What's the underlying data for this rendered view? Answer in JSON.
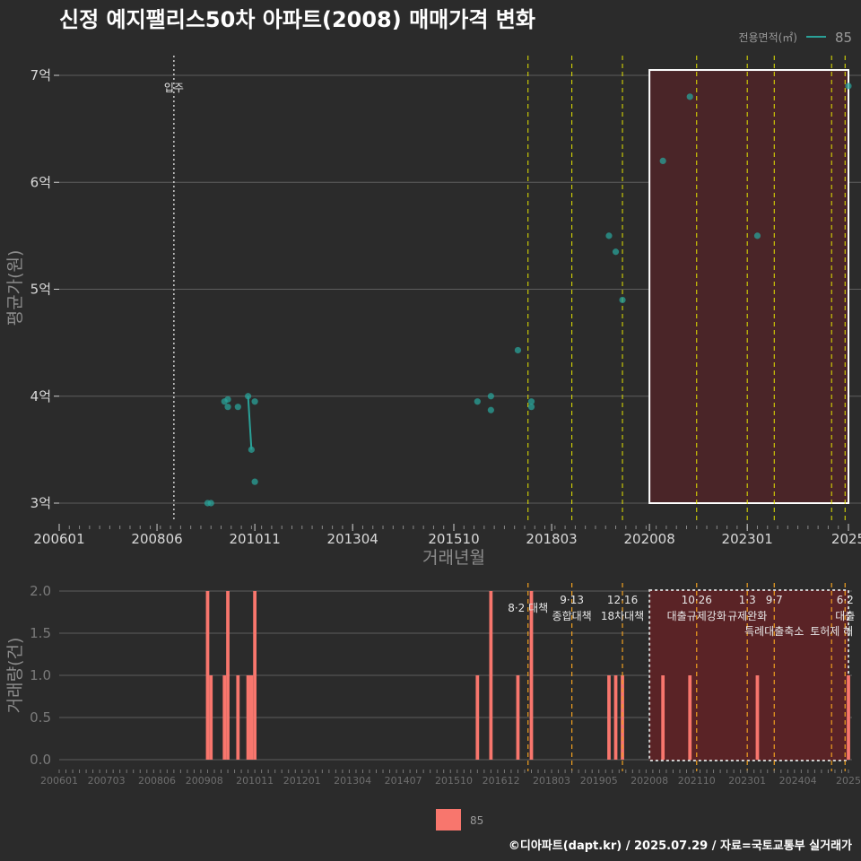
{
  "chart_data": [
    {
      "type": "scatter",
      "title": "신정 예지팰리스50차 아파트(2008) 매매가격 변화",
      "xlabel": "거래년월",
      "ylabel": "평균가(원)",
      "x_range": [
        "2006-01",
        "2025-07"
      ],
      "ylim": [
        2.8,
        7.2
      ],
      "y_ticks": [
        {
          "value": 3,
          "label": "3억"
        },
        {
          "value": 4,
          "label": "4억"
        },
        {
          "value": 5,
          "label": "5억"
        },
        {
          "value": 6,
          "label": "6억"
        },
        {
          "value": 7,
          "label": "7억"
        }
      ],
      "x_ticks": [
        "200601",
        "200806",
        "201011",
        "201304",
        "201510",
        "201803",
        "202008",
        "202301",
        "2025"
      ],
      "legend": {
        "title": "전용면적(㎡)",
        "label": "85"
      },
      "move_in": {
        "date": "2008-11",
        "label": "입주"
      },
      "highlight": {
        "start": "2020-08",
        "end": "2025-07",
        "y_from": 3.0,
        "y_to": 7.05
      },
      "policy_dates": [
        "2017-08",
        "2018-09",
        "2019-12",
        "2021-10",
        "2023-01",
        "2023-09",
        "2025-02",
        "2025-06"
      ],
      "series": [
        {
          "name": "85",
          "color": "#2aa198",
          "points": [
            {
              "x": "2009-09",
              "y": 3.0
            },
            {
              "x": "2009-10",
              "y": 3.0
            },
            {
              "x": "2010-02",
              "y": 3.95
            },
            {
              "x": "2010-03",
              "y": 3.97
            },
            {
              "x": "2010-03",
              "y": 3.9
            },
            {
              "x": "2010-06",
              "y": 3.9
            },
            {
              "x": "2010-09",
              "y": 4.0
            },
            {
              "x": "2010-10",
              "y": 3.5
            },
            {
              "x": "2010-11",
              "y": 3.95
            },
            {
              "x": "2010-11",
              "y": 3.2
            },
            {
              "x": "2016-05",
              "y": 3.95
            },
            {
              "x": "2016-09",
              "y": 3.87
            },
            {
              "x": "2016-09",
              "y": 4.0
            },
            {
              "x": "2017-05",
              "y": 4.43
            },
            {
              "x": "2017-09",
              "y": 3.95
            },
            {
              "x": "2017-09",
              "y": 3.9
            },
            {
              "x": "2019-08",
              "y": 5.5
            },
            {
              "x": "2019-10",
              "y": 5.35
            },
            {
              "x": "2019-12",
              "y": 4.9
            },
            {
              "x": "2020-12",
              "y": 6.2
            },
            {
              "x": "2021-08",
              "y": 6.8
            },
            {
              "x": "2023-04",
              "y": 5.5
            },
            {
              "x": "2025-07",
              "y": 6.9
            }
          ],
          "trend_segment": [
            {
              "x": "2010-09",
              "y": 4.0
            },
            {
              "x": "2010-10",
              "y": 3.5
            }
          ]
        }
      ]
    },
    {
      "type": "bar",
      "xlabel": "",
      "ylabel": "거래량(건)",
      "ylim": [
        0,
        2
      ],
      "y_ticks": [
        "0.0",
        "0.5",
        "1.0",
        "1.5",
        "2.0"
      ],
      "x_ticks": [
        "200601",
        "200703",
        "200806",
        "200908",
        "201011",
        "201201",
        "201304",
        "201407",
        "201510",
        "201612",
        "201803",
        "201905",
        "202008",
        "202110",
        "202301",
        "202404",
        "2025"
      ],
      "legend": {
        "label": "85",
        "color": "#f8766d"
      },
      "highlight": {
        "start": "2020-08",
        "end": "2025-07"
      },
      "series": [
        {
          "name": "85",
          "color": "#f8766d",
          "bars": [
            {
              "x": "2009-09",
              "value": 2
            },
            {
              "x": "2009-10",
              "value": 1
            },
            {
              "x": "2010-02",
              "value": 1
            },
            {
              "x": "2010-03",
              "value": 2
            },
            {
              "x": "2010-06",
              "value": 1
            },
            {
              "x": "2010-09",
              "value": 1
            },
            {
              "x": "2010-10",
              "value": 1
            },
            {
              "x": "2010-11",
              "value": 2
            },
            {
              "x": "2016-05",
              "value": 1
            },
            {
              "x": "2016-09",
              "value": 2
            },
            {
              "x": "2017-05",
              "value": 1
            },
            {
              "x": "2017-09",
              "value": 2
            },
            {
              "x": "2019-08",
              "value": 1
            },
            {
              "x": "2019-10",
              "value": 1
            },
            {
              "x": "2019-12",
              "value": 1
            },
            {
              "x": "2020-12",
              "value": 1
            },
            {
              "x": "2021-08",
              "value": 1
            },
            {
              "x": "2023-04",
              "value": 1
            },
            {
              "x": "2025-07",
              "value": 1
            }
          ]
        }
      ],
      "policies": [
        {
          "date": "2017-08",
          "date_label": "",
          "text": "8·2 대책"
        },
        {
          "date": "2018-09",
          "date_label": "9·13",
          "text": "종합대책"
        },
        {
          "date": "2019-12",
          "date_label": "12·16",
          "text": "18차대책"
        },
        {
          "date": "2021-10",
          "date_label": "10·26",
          "text": "대출규제강화"
        },
        {
          "date": "2023-01",
          "date_label": "1·3",
          "text": "규제완화"
        },
        {
          "date": "2023-09",
          "date_label": "9·7",
          "text": "특례대출축소"
        },
        {
          "date": "2025-02",
          "date_label": "",
          "text": "토허제 해"
        },
        {
          "date": "2025-06",
          "date_label": "6·2",
          "text": "대출"
        }
      ]
    }
  ],
  "footer": "©디아파트(dapt.kr) / 2025.07.29 / 자료=국토교통부 실거래가"
}
